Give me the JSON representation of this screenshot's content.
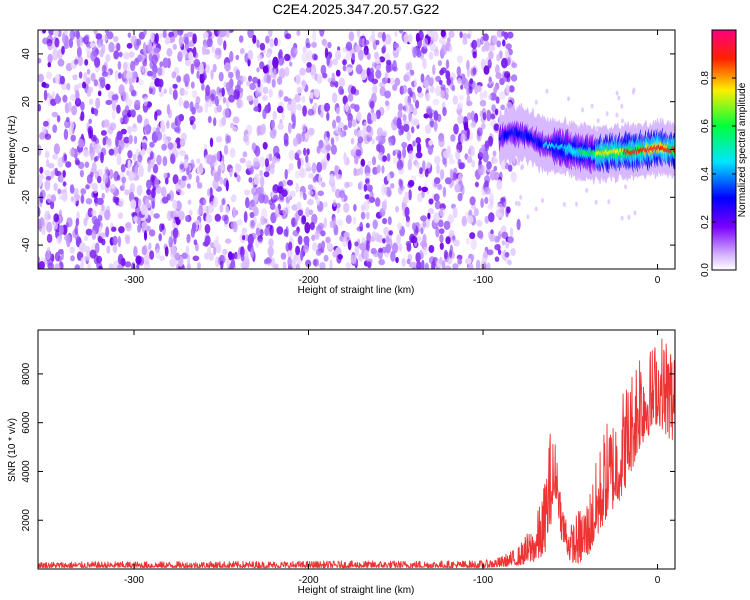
{
  "title": "C2E4.2025.347.20.57.G22",
  "chart_data": [
    {
      "type": "heatmap",
      "name": "spectrogram",
      "xlabel": "Height of straight line (km)",
      "ylabel": "Frequency (Hz)",
      "xlim": [
        -355,
        10
      ],
      "ylim": [
        -50,
        50
      ],
      "xticks": [
        -300,
        -200,
        -100,
        0
      ],
      "yticks": [
        -40,
        -20,
        0,
        20,
        40
      ],
      "noise_region_x": [
        -355,
        -82
      ],
      "signal_ridge": {
        "x": [
          -90,
          -82,
          -75,
          -65,
          -55,
          -45,
          -35,
          -25,
          -15,
          -5,
          0,
          5,
          10
        ],
        "freq": [
          5,
          7,
          6,
          2,
          1,
          -1,
          -2,
          -1,
          -1,
          0,
          1,
          0,
          0
        ],
        "peak_amplitude": [
          0.35,
          0.45,
          0.4,
          0.45,
          0.55,
          0.6,
          0.75,
          0.85,
          0.9,
          0.95,
          1.0,
          0.95,
          0.9
        ]
      },
      "colorbar": {
        "label": "Normalized spectral amplitude",
        "range": [
          0.0,
          1.0
        ],
        "ticks": [
          "0.0",
          "0.2",
          "0.4",
          "0.6",
          "0.8"
        ],
        "colormap": [
          "#ffffff",
          "#d8b8ff",
          "#7a00ff",
          "#0000ff",
          "#00e5ff",
          "#00ff3c",
          "#ffee00",
          "#ff2200",
          "#ff0080"
        ]
      }
    },
    {
      "type": "line",
      "name": "snr",
      "xlabel": "Height of straight line (km)",
      "ylabel": "SNR (10 * v/v)",
      "xlim": [
        -355,
        10
      ],
      "ylim": [
        0,
        9800
      ],
      "xticks": [
        -300,
        -200,
        -100,
        0
      ],
      "yticks": [
        2000,
        4000,
        6000,
        8000
      ],
      "color": "#ee3333",
      "envelope": {
        "x": [
          -355,
          -100,
          -90,
          -80,
          -70,
          -65,
          -62,
          -58,
          -55,
          -50,
          -45,
          -40,
          -35,
          -30,
          -25,
          -20,
          -15,
          -10,
          -5,
          0,
          5,
          10
        ],
        "low": [
          50,
          50,
          80,
          150,
          300,
          500,
          1500,
          3000,
          1200,
          300,
          200,
          500,
          1200,
          2000,
          2500,
          3000,
          4000,
          5000,
          5500,
          6000,
          5500,
          5000
        ],
        "high": [
          300,
          350,
          500,
          900,
          2000,
          3500,
          5800,
          5200,
          3000,
          1800,
          2500,
          3000,
          4500,
          6000,
          6500,
          7500,
          8200,
          9800,
          9000,
          9600,
          9800,
          9500
        ]
      }
    }
  ]
}
